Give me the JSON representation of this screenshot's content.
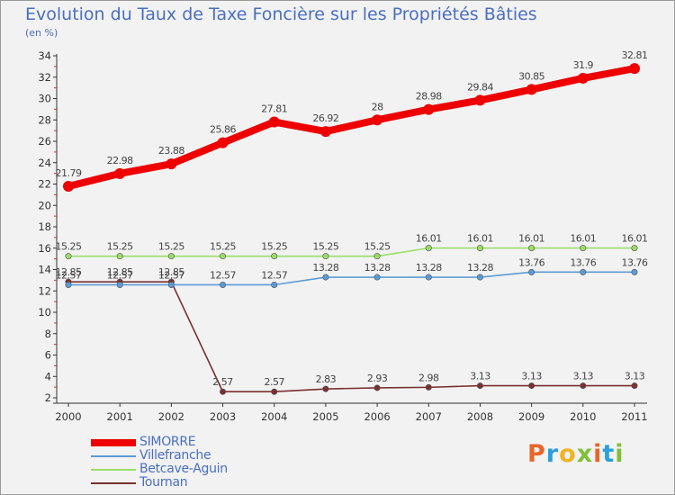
{
  "title": "Evolution du Taux de Taxe Foncière sur les Propriétés Bâties",
  "unit_label": "(en %)",
  "logo_text": "Proxiti",
  "logo_colors": [
    "#e8652a",
    "#2aa0d8",
    "#f0b323",
    "#7fbf3a",
    "#e8652a",
    "#2aa0d8",
    "#7fbf3a"
  ],
  "chart_data": {
    "type": "line",
    "title": "Evolution du Taux de Taxe Foncière sur les Propriétés Bâties",
    "ylabel": "(en %)",
    "xlabel": "",
    "x": [
      "2000",
      "2001",
      "2002",
      "2003",
      "2004",
      "2005",
      "2006",
      "2007",
      "2008",
      "2009",
      "2010",
      "2011"
    ],
    "ylim": [
      2,
      34
    ],
    "yticks": [
      2,
      4,
      6,
      8,
      10,
      12,
      14,
      16,
      18,
      20,
      22,
      24,
      26,
      28,
      30,
      32,
      34
    ],
    "grid": false,
    "series": [
      {
        "name": "SIMORRE",
        "color": "#ee0000",
        "values": [
          21.79,
          22.98,
          23.88,
          25.86,
          27.81,
          26.92,
          28,
          28.98,
          29.84,
          30.85,
          31.9,
          32.81
        ],
        "labels": [
          "21.79",
          "22.98",
          "23.88",
          "25.86",
          "27.81",
          "26.92",
          "28",
          "28.98",
          "29.84",
          "30.85",
          "31.9",
          "32.81"
        ]
      },
      {
        "name": "Villefranche",
        "color": "#5b9bd5",
        "values": [
          12.57,
          12.57,
          12.57,
          12.57,
          12.57,
          13.28,
          13.28,
          13.28,
          13.28,
          13.76,
          13.76,
          13.76
        ],
        "labels": [
          "12.57",
          "12.57",
          "12.57",
          "12.57",
          "12.57",
          "13.28",
          "13.28",
          "13.28",
          "13.28",
          "13.76",
          "13.76",
          "13.76"
        ]
      },
      {
        "name": "Betcave-Aguin",
        "color": "#99dd66",
        "values": [
          15.25,
          15.25,
          15.25,
          15.25,
          15.25,
          15.25,
          15.25,
          16.01,
          16.01,
          16.01,
          16.01,
          16.01
        ],
        "labels": [
          "15.25",
          "15.25",
          "15.25",
          "15.25",
          "15.25",
          "15.25",
          "15.25",
          "16.01",
          "16.01",
          "16.01",
          "16.01",
          "16.01"
        ]
      },
      {
        "name": "Tournan",
        "color": "#7a3030",
        "values": [
          12.85,
          12.85,
          12.85,
          2.57,
          2.57,
          2.83,
          2.93,
          2.98,
          3.13,
          3.13,
          3.13,
          3.13
        ],
        "labels": [
          "12.85",
          "12.85",
          "12.85",
          "2.57",
          "2.57",
          "2.83",
          "2.93",
          "2.98",
          "3.13",
          "3.13",
          "3.13",
          "3.13"
        ]
      }
    ],
    "legend": [
      "SIMORRE",
      "Villefranche",
      "Betcave-Aguin",
      "Tournan"
    ]
  }
}
